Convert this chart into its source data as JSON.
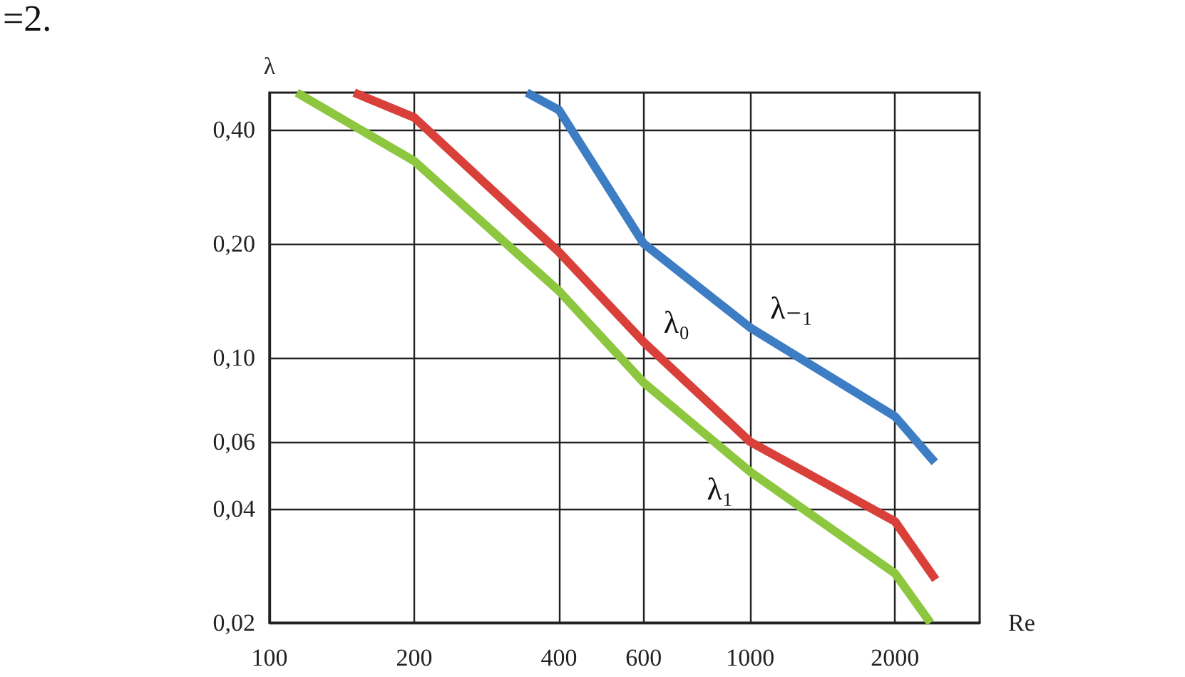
{
  "chart_data": {
    "type": "line",
    "xlabel": "Re",
    "ylabel": "λ",
    "annotations": [
      "=2."
    ],
    "log": "xy",
    "grid": true,
    "legend": false,
    "marker": "none",
    "line_style": "solid",
    "xlim": [
      100,
      3000
    ],
    "xticks": [
      100,
      200,
      400,
      600,
      1000,
      2000
    ],
    "ylim": [
      0.02,
      0.5
    ],
    "yticks": [
      {
        "value": 0.02,
        "label": "0,02"
      },
      {
        "value": 0.04,
        "label": "0,04"
      },
      {
        "value": 0.06,
        "label": "0,06"
      },
      {
        "value": 0.1,
        "label": "0,10"
      },
      {
        "value": 0.2,
        "label": "0,20"
      },
      {
        "value": 0.4,
        "label": "0,40"
      }
    ],
    "series": [
      {
        "name": "λ₋₁",
        "color": "#3c7dc4",
        "x": [
          343,
          400,
          600,
          1000,
          2000,
          2420
        ],
        "values": [
          0.5,
          0.45,
          0.2,
          0.12,
          0.07,
          0.053
        ]
      },
      {
        "name": "λ₀",
        "color": "#d9403a",
        "x": [
          150,
          200,
          400,
          600,
          1000,
          2000,
          2430
        ],
        "values": [
          0.5,
          0.43,
          0.19,
          0.11,
          0.06,
          0.037,
          0.026
        ]
      },
      {
        "name": "λ₁",
        "color": "#8dc63f",
        "x": [
          114,
          200,
          400,
          600,
          1000,
          2000,
          2370
        ],
        "values": [
          0.5,
          0.33,
          0.15,
          0.086,
          0.05,
          0.027,
          0.02
        ]
      }
    ]
  }
}
